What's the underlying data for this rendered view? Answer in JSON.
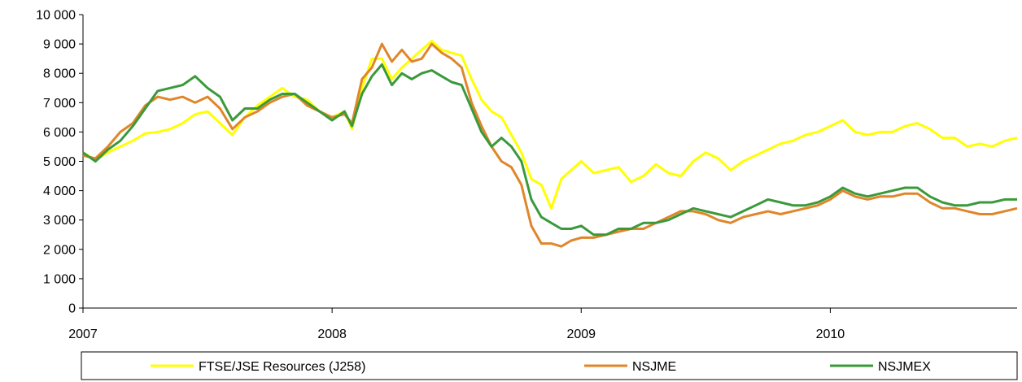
{
  "chart_data": {
    "type": "line",
    "title": "",
    "xlabel": "",
    "ylabel": "",
    "xlim": [
      2007,
      2010.75
    ],
    "ylim": [
      0,
      10000
    ],
    "x_ticks": [
      2007,
      2008,
      2009,
      2010
    ],
    "x_tick_labels": [
      "2007",
      "2008",
      "2009",
      "2010"
    ],
    "y_ticks": [
      0,
      1000,
      2000,
      3000,
      4000,
      5000,
      6000,
      7000,
      8000,
      9000,
      10000
    ],
    "y_tick_labels": [
      "0",
      "1 000",
      "2 000",
      "3 000",
      "4 000",
      "5 000",
      "6 000",
      "7 000",
      "8 000",
      "9 000",
      "10 000"
    ],
    "grid": false,
    "legend_position": "bottom",
    "series": [
      {
        "name": "FTSE/JSE Resources (J258)",
        "color": "#ffff00",
        "points": [
          [
            2007.0,
            5300
          ],
          [
            2007.05,
            5050
          ],
          [
            2007.1,
            5300
          ],
          [
            2007.15,
            5500
          ],
          [
            2007.2,
            5700
          ],
          [
            2007.25,
            5950
          ],
          [
            2007.3,
            6000
          ],
          [
            2007.35,
            6100
          ],
          [
            2007.4,
            6300
          ],
          [
            2007.45,
            6600
          ],
          [
            2007.5,
            6700
          ],
          [
            2007.55,
            6300
          ],
          [
            2007.6,
            5900
          ],
          [
            2007.65,
            6500
          ],
          [
            2007.7,
            6900
          ],
          [
            2007.75,
            7200
          ],
          [
            2007.8,
            7500
          ],
          [
            2007.85,
            7200
          ],
          [
            2007.9,
            7100
          ],
          [
            2007.95,
            6700
          ],
          [
            2008.0,
            6500
          ],
          [
            2008.05,
            6700
          ],
          [
            2008.08,
            6100
          ],
          [
            2008.12,
            7500
          ],
          [
            2008.16,
            8500
          ],
          [
            2008.2,
            8500
          ],
          [
            2008.24,
            7800
          ],
          [
            2008.28,
            8200
          ],
          [
            2008.32,
            8500
          ],
          [
            2008.36,
            8800
          ],
          [
            2008.4,
            9100
          ],
          [
            2008.44,
            8800
          ],
          [
            2008.48,
            8700
          ],
          [
            2008.52,
            8600
          ],
          [
            2008.56,
            7800
          ],
          [
            2008.6,
            7100
          ],
          [
            2008.64,
            6700
          ],
          [
            2008.68,
            6500
          ],
          [
            2008.72,
            5900
          ],
          [
            2008.76,
            5300
          ],
          [
            2008.8,
            4400
          ],
          [
            2008.84,
            4200
          ],
          [
            2008.88,
            3400
          ],
          [
            2008.92,
            4400
          ],
          [
            2008.96,
            4700
          ],
          [
            2009.0,
            5000
          ],
          [
            2009.05,
            4600
          ],
          [
            2009.1,
            4700
          ],
          [
            2009.15,
            4800
          ],
          [
            2009.2,
            4300
          ],
          [
            2009.25,
            4500
          ],
          [
            2009.3,
            4900
          ],
          [
            2009.35,
            4600
          ],
          [
            2009.4,
            4500
          ],
          [
            2009.45,
            5000
          ],
          [
            2009.5,
            5300
          ],
          [
            2009.55,
            5100
          ],
          [
            2009.6,
            4700
          ],
          [
            2009.65,
            5000
          ],
          [
            2009.7,
            5200
          ],
          [
            2009.75,
            5400
          ],
          [
            2009.8,
            5600
          ],
          [
            2009.85,
            5700
          ],
          [
            2009.9,
            5900
          ],
          [
            2009.95,
            6000
          ],
          [
            2010.0,
            6200
          ],
          [
            2010.05,
            6400
          ],
          [
            2010.1,
            6000
          ],
          [
            2010.15,
            5900
          ],
          [
            2010.2,
            6000
          ],
          [
            2010.25,
            6000
          ],
          [
            2010.3,
            6200
          ],
          [
            2010.35,
            6300
          ],
          [
            2010.4,
            6100
          ],
          [
            2010.45,
            5800
          ],
          [
            2010.5,
            5800
          ],
          [
            2010.55,
            5500
          ],
          [
            2010.6,
            5600
          ],
          [
            2010.65,
            5500
          ],
          [
            2010.7,
            5700
          ],
          [
            2010.75,
            5800
          ]
        ]
      },
      {
        "name": "NSJME",
        "color": "#e0862a",
        "points": [
          [
            2007.0,
            5200
          ],
          [
            2007.05,
            5100
          ],
          [
            2007.1,
            5500
          ],
          [
            2007.15,
            6000
          ],
          [
            2007.2,
            6300
          ],
          [
            2007.25,
            6900
          ],
          [
            2007.3,
            7200
          ],
          [
            2007.35,
            7100
          ],
          [
            2007.4,
            7200
          ],
          [
            2007.45,
            7000
          ],
          [
            2007.5,
            7200
          ],
          [
            2007.55,
            6800
          ],
          [
            2007.6,
            6100
          ],
          [
            2007.65,
            6500
          ],
          [
            2007.7,
            6700
          ],
          [
            2007.75,
            7000
          ],
          [
            2007.8,
            7200
          ],
          [
            2007.85,
            7300
          ],
          [
            2007.9,
            6900
          ],
          [
            2007.95,
            6700
          ],
          [
            2008.0,
            6500
          ],
          [
            2008.05,
            6600
          ],
          [
            2008.08,
            6300
          ],
          [
            2008.12,
            7800
          ],
          [
            2008.16,
            8200
          ],
          [
            2008.2,
            9000
          ],
          [
            2008.24,
            8400
          ],
          [
            2008.28,
            8800
          ],
          [
            2008.32,
            8400
          ],
          [
            2008.36,
            8500
          ],
          [
            2008.4,
            9000
          ],
          [
            2008.44,
            8700
          ],
          [
            2008.48,
            8500
          ],
          [
            2008.52,
            8200
          ],
          [
            2008.56,
            7000
          ],
          [
            2008.6,
            6200
          ],
          [
            2008.64,
            5500
          ],
          [
            2008.68,
            5000
          ],
          [
            2008.72,
            4800
          ],
          [
            2008.76,
            4200
          ],
          [
            2008.8,
            2800
          ],
          [
            2008.84,
            2200
          ],
          [
            2008.88,
            2200
          ],
          [
            2008.92,
            2100
          ],
          [
            2008.96,
            2300
          ],
          [
            2009.0,
            2400
          ],
          [
            2009.05,
            2400
          ],
          [
            2009.1,
            2500
          ],
          [
            2009.15,
            2600
          ],
          [
            2009.2,
            2700
          ],
          [
            2009.25,
            2700
          ],
          [
            2009.3,
            2900
          ],
          [
            2009.35,
            3100
          ],
          [
            2009.4,
            3300
          ],
          [
            2009.45,
            3300
          ],
          [
            2009.5,
            3200
          ],
          [
            2009.55,
            3000
          ],
          [
            2009.6,
            2900
          ],
          [
            2009.65,
            3100
          ],
          [
            2009.7,
            3200
          ],
          [
            2009.75,
            3300
          ],
          [
            2009.8,
            3200
          ],
          [
            2009.85,
            3300
          ],
          [
            2009.9,
            3400
          ],
          [
            2009.95,
            3500
          ],
          [
            2010.0,
            3700
          ],
          [
            2010.05,
            4000
          ],
          [
            2010.1,
            3800
          ],
          [
            2010.15,
            3700
          ],
          [
            2010.2,
            3800
          ],
          [
            2010.25,
            3800
          ],
          [
            2010.3,
            3900
          ],
          [
            2010.35,
            3900
          ],
          [
            2010.4,
            3600
          ],
          [
            2010.45,
            3400
          ],
          [
            2010.5,
            3400
          ],
          [
            2010.55,
            3300
          ],
          [
            2010.6,
            3200
          ],
          [
            2010.65,
            3200
          ],
          [
            2010.7,
            3300
          ],
          [
            2010.75,
            3400
          ]
        ]
      },
      {
        "name": "NSJMEX",
        "color": "#3a9a3a",
        "points": [
          [
            2007.0,
            5300
          ],
          [
            2007.05,
            5000
          ],
          [
            2007.1,
            5400
          ],
          [
            2007.15,
            5700
          ],
          [
            2007.2,
            6200
          ],
          [
            2007.25,
            6800
          ],
          [
            2007.3,
            7400
          ],
          [
            2007.35,
            7500
          ],
          [
            2007.4,
            7600
          ],
          [
            2007.45,
            7900
          ],
          [
            2007.5,
            7500
          ],
          [
            2007.55,
            7200
          ],
          [
            2007.6,
            6400
          ],
          [
            2007.65,
            6800
          ],
          [
            2007.7,
            6800
          ],
          [
            2007.75,
            7100
          ],
          [
            2007.8,
            7300
          ],
          [
            2007.85,
            7300
          ],
          [
            2007.9,
            7000
          ],
          [
            2007.95,
            6700
          ],
          [
            2008.0,
            6400
          ],
          [
            2008.05,
            6700
          ],
          [
            2008.08,
            6200
          ],
          [
            2008.12,
            7300
          ],
          [
            2008.16,
            7900
          ],
          [
            2008.2,
            8300
          ],
          [
            2008.24,
            7600
          ],
          [
            2008.28,
            8000
          ],
          [
            2008.32,
            7800
          ],
          [
            2008.36,
            8000
          ],
          [
            2008.4,
            8100
          ],
          [
            2008.44,
            7900
          ],
          [
            2008.48,
            7700
          ],
          [
            2008.52,
            7600
          ],
          [
            2008.56,
            6800
          ],
          [
            2008.6,
            6000
          ],
          [
            2008.64,
            5500
          ],
          [
            2008.68,
            5800
          ],
          [
            2008.72,
            5500
          ],
          [
            2008.76,
            5000
          ],
          [
            2008.8,
            3700
          ],
          [
            2008.84,
            3100
          ],
          [
            2008.88,
            2900
          ],
          [
            2008.92,
            2700
          ],
          [
            2008.96,
            2700
          ],
          [
            2009.0,
            2800
          ],
          [
            2009.05,
            2500
          ],
          [
            2009.1,
            2500
          ],
          [
            2009.15,
            2700
          ],
          [
            2009.2,
            2700
          ],
          [
            2009.25,
            2900
          ],
          [
            2009.3,
            2900
          ],
          [
            2009.35,
            3000
          ],
          [
            2009.4,
            3200
          ],
          [
            2009.45,
            3400
          ],
          [
            2009.5,
            3300
          ],
          [
            2009.55,
            3200
          ],
          [
            2009.6,
            3100
          ],
          [
            2009.65,
            3300
          ],
          [
            2009.7,
            3500
          ],
          [
            2009.75,
            3700
          ],
          [
            2009.8,
            3600
          ],
          [
            2009.85,
            3500
          ],
          [
            2009.9,
            3500
          ],
          [
            2009.95,
            3600
          ],
          [
            2010.0,
            3800
          ],
          [
            2010.05,
            4100
          ],
          [
            2010.1,
            3900
          ],
          [
            2010.15,
            3800
          ],
          [
            2010.2,
            3900
          ],
          [
            2010.25,
            4000
          ],
          [
            2010.3,
            4100
          ],
          [
            2010.35,
            4100
          ],
          [
            2010.4,
            3800
          ],
          [
            2010.45,
            3600
          ],
          [
            2010.5,
            3500
          ],
          [
            2010.55,
            3500
          ],
          [
            2010.6,
            3600
          ],
          [
            2010.65,
            3600
          ],
          [
            2010.7,
            3700
          ],
          [
            2010.75,
            3700
          ]
        ]
      }
    ]
  }
}
